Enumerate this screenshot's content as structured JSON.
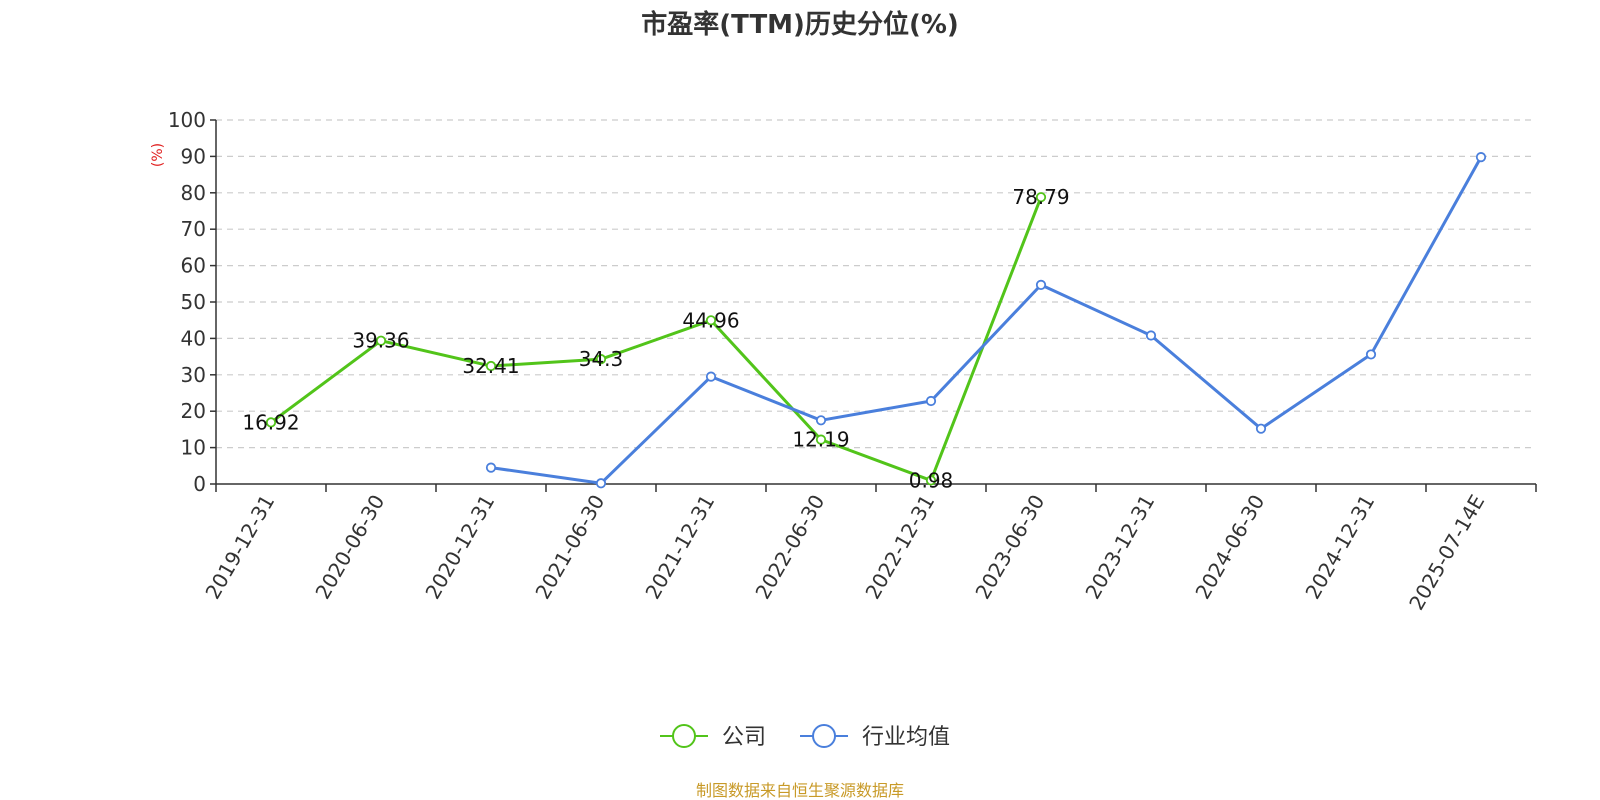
{
  "chart_data": {
    "type": "line",
    "title": "市盈率(TTM)历史分位(%)",
    "ylabel": "(%)",
    "ylim": [
      0,
      100
    ],
    "yticks": [
      0,
      10,
      20,
      30,
      40,
      50,
      60,
      70,
      80,
      90,
      100
    ],
    "grid": true,
    "legend_position": "bottom-center",
    "categories": [
      "2019-12-31",
      "2020-06-30",
      "2020-12-31",
      "2021-06-30",
      "2021-12-31",
      "2022-06-30",
      "2022-12-31",
      "2023-06-30",
      "2023-12-31",
      "2024-06-30",
      "2024-12-31",
      "2025-07-14E"
    ],
    "series": [
      {
        "name": "公司",
        "color": "#52c41a",
        "show_labels": true,
        "values": [
          16.92,
          39.36,
          32.41,
          34.3,
          44.96,
          12.19,
          0.98,
          78.79,
          null,
          null,
          null,
          null
        ]
      },
      {
        "name": "行业均值",
        "color": "#4a7fdc",
        "show_labels": false,
        "values": [
          null,
          null,
          4.5,
          0.2,
          29.5,
          17.5,
          22.8,
          54.7,
          40.8,
          15.2,
          35.6,
          89.8
        ]
      }
    ]
  },
  "source_text": "制图数据来自恒生聚源数据库",
  "colors": {
    "ylabel": "#e02020",
    "source": "#c89a28",
    "grid": "#cccccc",
    "axis": "#333333"
  }
}
